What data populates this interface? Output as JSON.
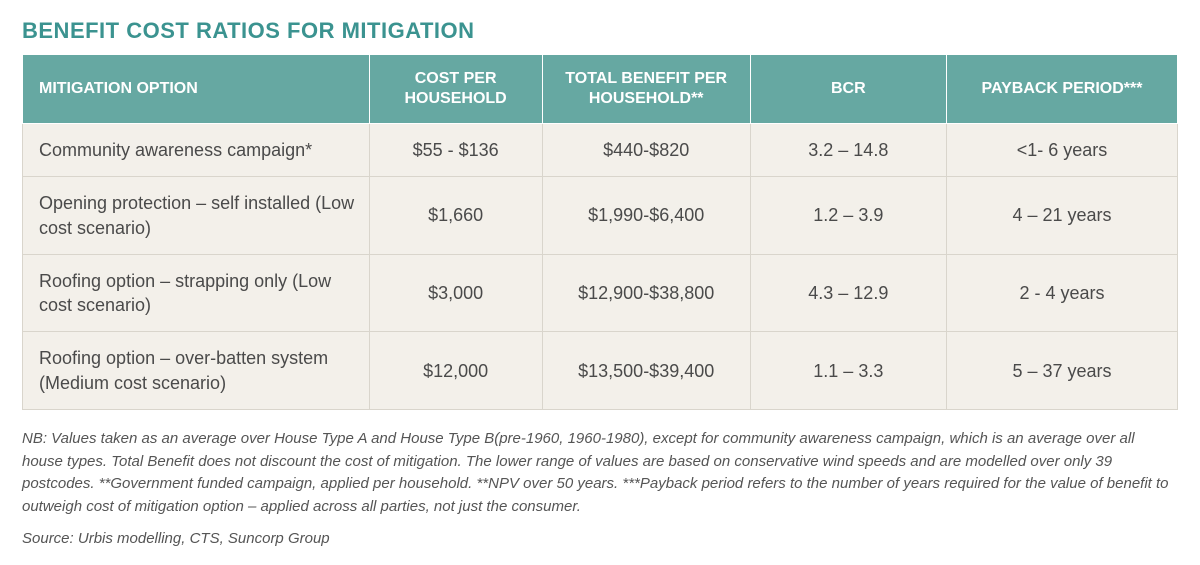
{
  "title": "BENEFIT COST RATIOS FOR MITIGATION",
  "table": {
    "type": "table",
    "header_bg": "#66a8a2",
    "header_text_color": "#ffffff",
    "row_bg": "#f3f0ea",
    "border_color": "#d9d5cc",
    "columns": [
      {
        "label": "MITIGATION OPTION",
        "align": "left",
        "width": "30%"
      },
      {
        "label": "COST PER HOUSEHOLD",
        "align": "center",
        "width": "15%"
      },
      {
        "label": "TOTAL BENEFIT PER HOUSEHOLD**",
        "align": "center",
        "width": "18%"
      },
      {
        "label": "BCR",
        "align": "center",
        "width": "17%"
      },
      {
        "label": "PAYBACK PERIOD***",
        "align": "center",
        "width": "20%"
      }
    ],
    "rows": [
      [
        "Community awareness campaign*",
        "$55 - $136",
        "$440-$820",
        "3.2 – 14.8",
        "<1- 6 years"
      ],
      [
        "Opening protection – self installed (Low cost scenario)",
        "$1,660",
        "$1,990-$6,400",
        "1.2 – 3.9",
        "4 – 21 years"
      ],
      [
        "Roofing option – strapping only (Low cost scenario)",
        "$3,000",
        "$12,900-$38,800",
        "4.3 – 12.9",
        "2 - 4 years"
      ],
      [
        "Roofing option – over-batten system (Medium cost scenario)",
        "$12,000",
        "$13,500-$39,400",
        "1.1 – 3.3",
        "5 – 37 years"
      ]
    ]
  },
  "footnote": "NB: Values taken as an average over House Type A and House Type B(pre-1960, 1960-1980), except for community awareness campaign, which is an average over all house types. Total Benefit does not discount the cost of mitigation. The lower range of values are based on conservative wind speeds and are modelled over only 39 postcodes. **Government funded campaign, applied per household. **NPV over 50 years. ***Payback period refers to the number of years required for the value of benefit to outweigh cost of mitigation option – applied across all parties, not just the consumer.",
  "source": "Source: Urbis modelling, CTS, Suncorp Group",
  "colors": {
    "title": "#3b9390",
    "body_text": "#4a4a4a",
    "footnote_text": "#555555",
    "background": "#ffffff"
  },
  "typography": {
    "title_fontsize": 22,
    "header_fontsize": 16,
    "cell_fontsize": 18,
    "footnote_fontsize": 15,
    "font_family": "Arial, Helvetica, sans-serif"
  }
}
